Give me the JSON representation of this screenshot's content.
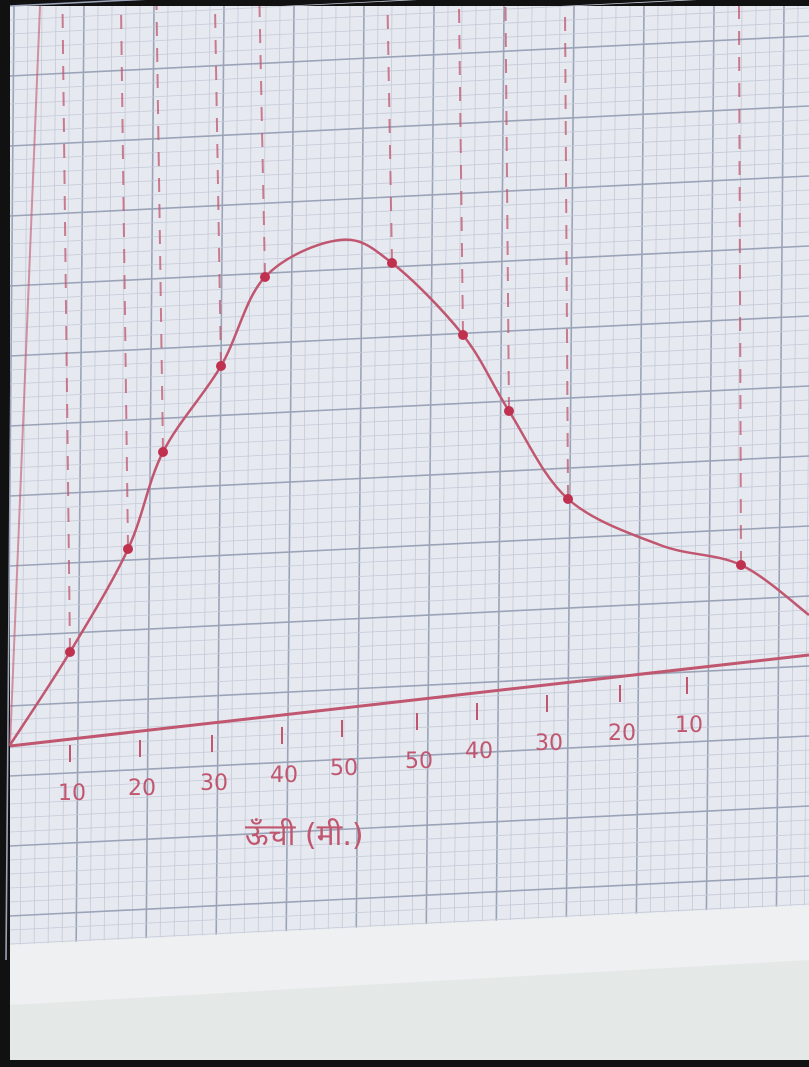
{
  "x_axis": {
    "labels": [
      "10",
      "20",
      "30",
      "40",
      "50",
      "50",
      "40",
      "30",
      "20",
      "10"
    ],
    "title": "ऊँची (मी.)"
  }
}
